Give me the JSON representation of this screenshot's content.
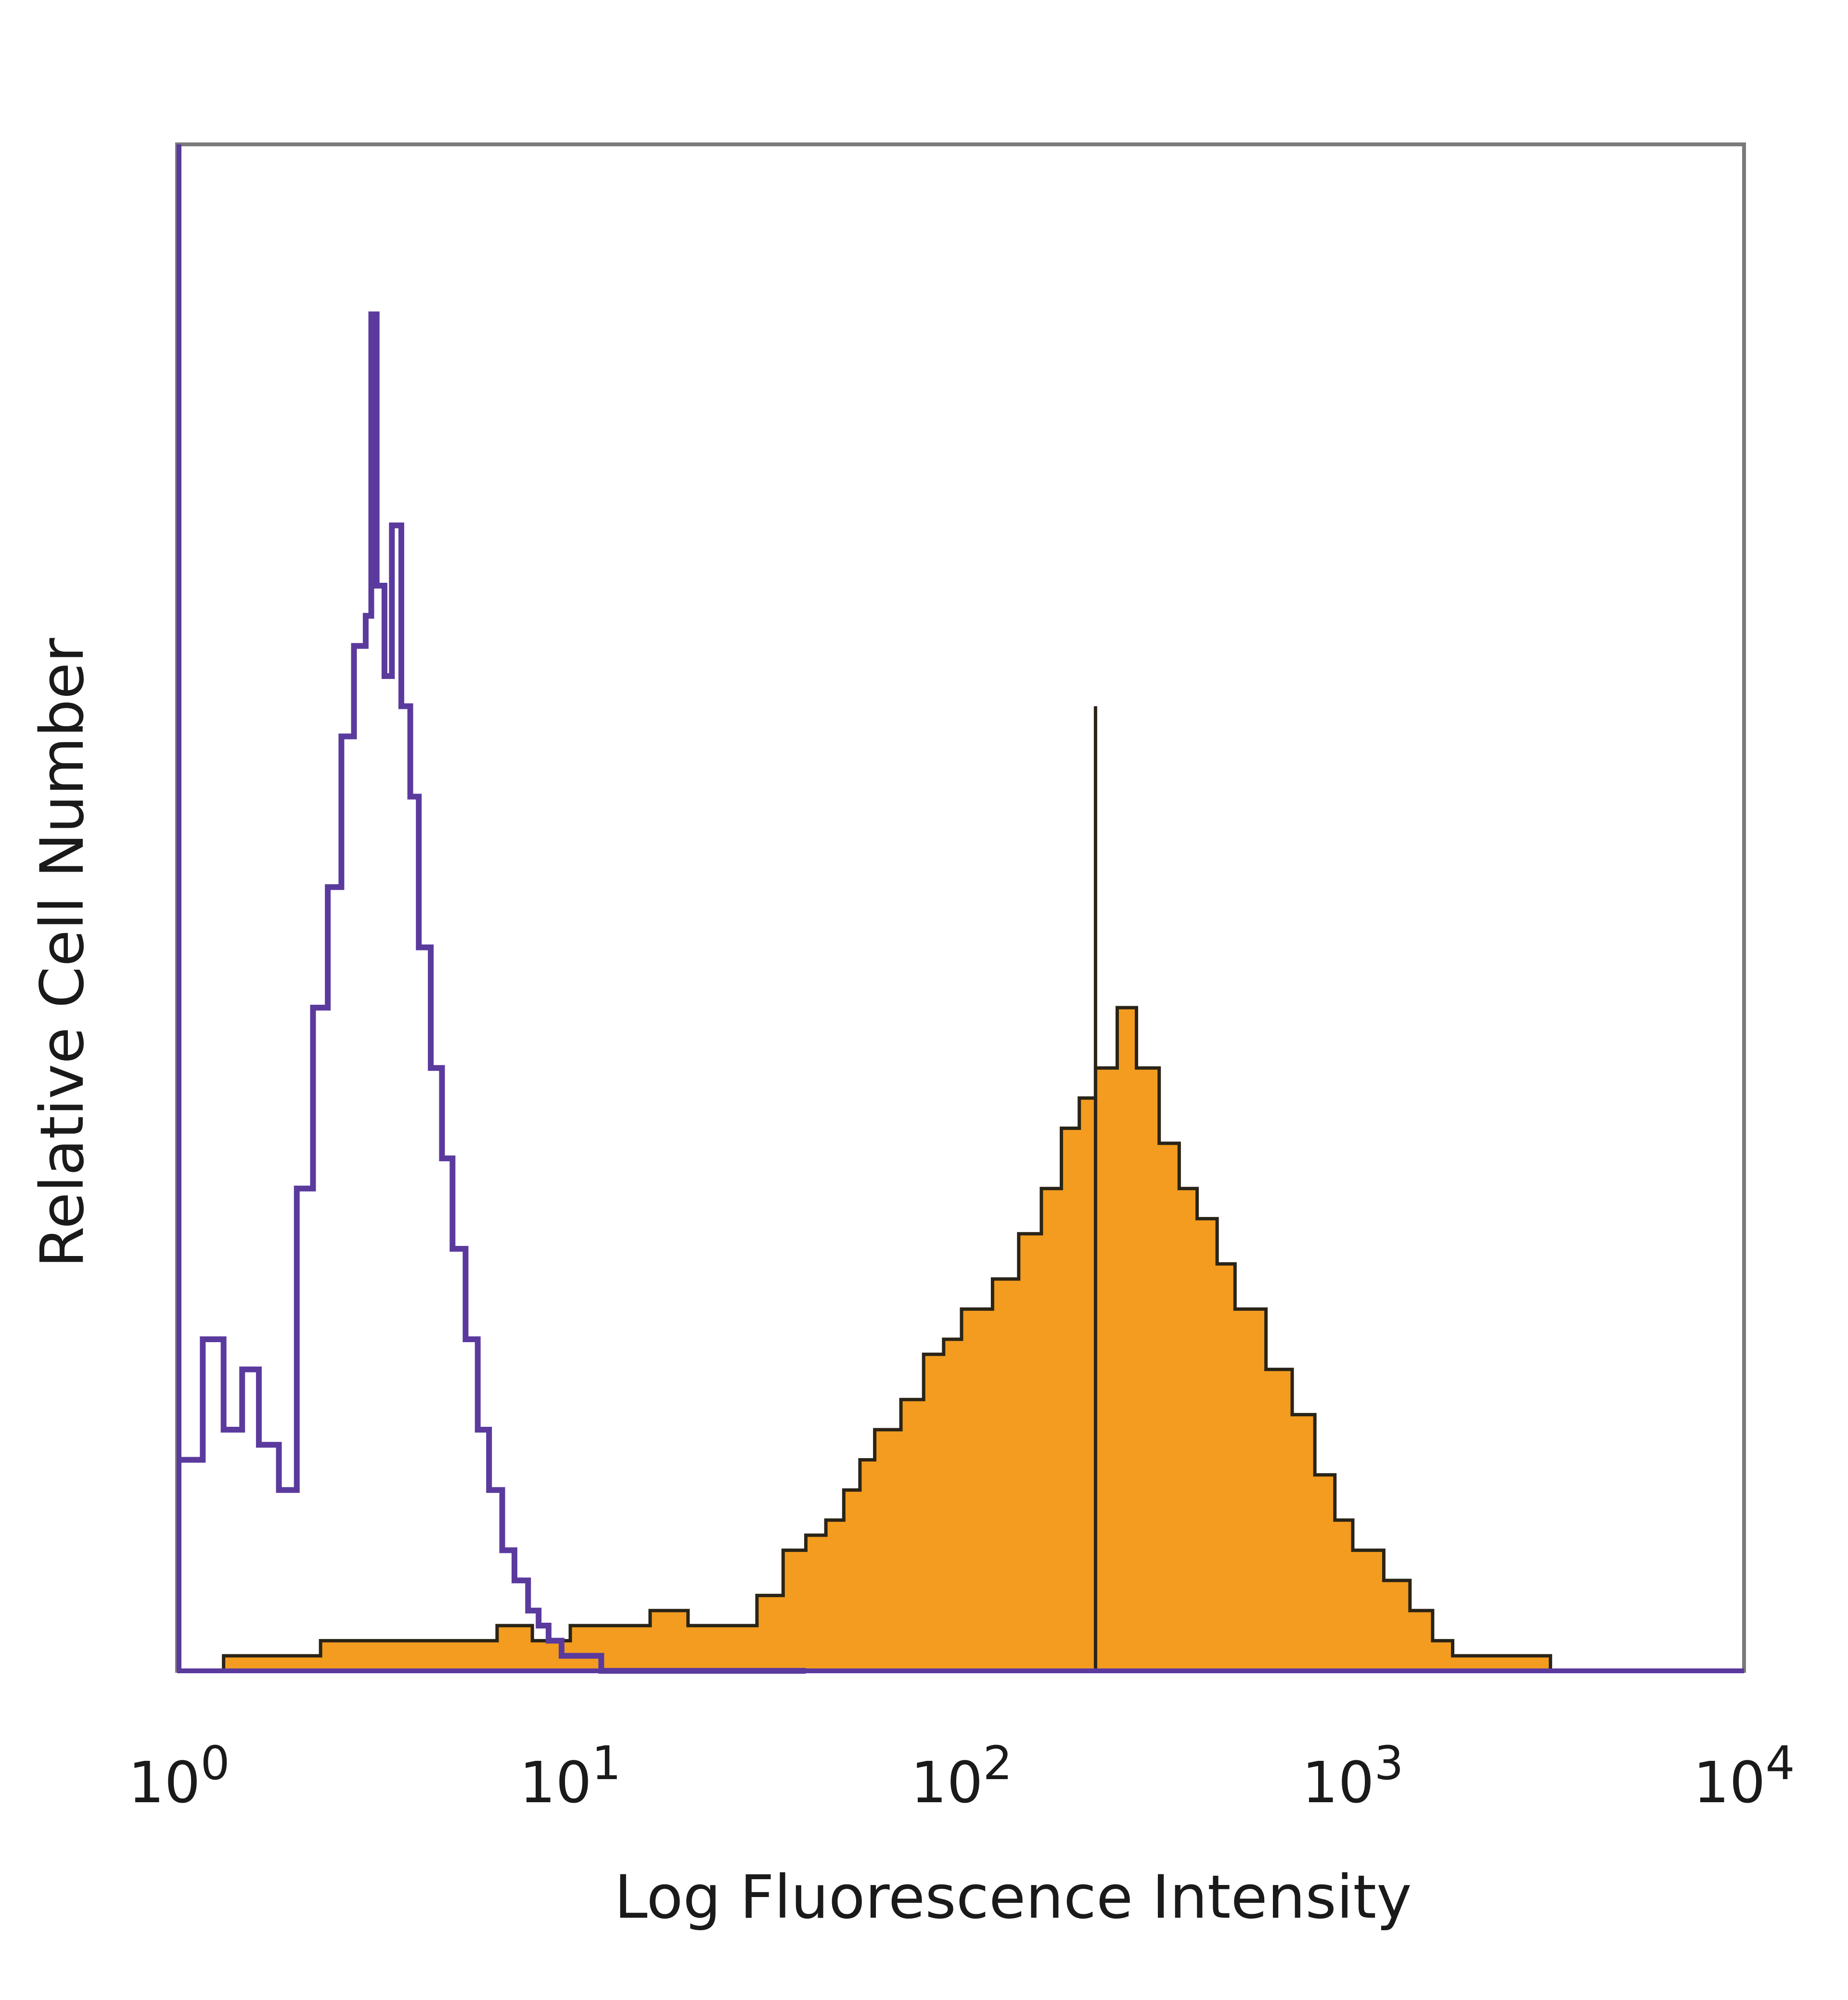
{
  "chart_data": {
    "type": "area",
    "title": "",
    "xlabel": "Log Fluorescence Intensity",
    "ylabel": "Relative Cell Number",
    "x_scale": "log",
    "xlim": [
      1,
      10000
    ],
    "ylim": [
      0,
      100
    ],
    "x_ticks": [
      {
        "value": 1,
        "base": "10",
        "exp": "0"
      },
      {
        "value": 10,
        "base": "10",
        "exp": "1"
      },
      {
        "value": 100,
        "base": "10",
        "exp": "2"
      },
      {
        "value": 1000,
        "base": "10",
        "exp": "3"
      },
      {
        "value": 10000,
        "base": "10",
        "exp": "4"
      }
    ],
    "y_ticks": [],
    "grid": false,
    "legend": "none",
    "series": [
      {
        "style": "outline",
        "color": "#5b3a9e",
        "x": [
          1.0,
          1.15,
          1.3,
          1.45,
          1.6,
          1.8,
          2.0,
          2.2,
          2.4,
          2.6,
          2.8,
          3.0,
          3.1,
          3.2,
          3.35,
          3.5,
          3.7,
          3.9,
          4.1,
          4.4,
          4.7,
          5.0,
          5.4,
          5.8,
          6.2,
          6.7,
          7.2,
          7.8,
          8.3,
          8.8,
          9.5,
          12,
          20,
          40
        ],
        "y": [
          14,
          22,
          16,
          20,
          15,
          12,
          32,
          44,
          52,
          62,
          68,
          70,
          90,
          72,
          66,
          76,
          64,
          58,
          48,
          40,
          34,
          28,
          22,
          16,
          12,
          8,
          6,
          4,
          3,
          2,
          1,
          0,
          0,
          0
        ]
      },
      {
        "style": "filled",
        "color": "#f39c1f",
        "outline_color": "#2a2418",
        "x": [
          1.3,
          2.3,
          3.0,
          4.0,
          5.0,
          6.5,
          8.0,
          10,
          13,
          16,
          20,
          25,
          30,
          35,
          40,
          45,
          50,
          55,
          60,
          70,
          80,
          90,
          100,
          120,
          140,
          160,
          180,
          200,
          220,
          250,
          280,
          320,
          360,
          400,
          450,
          500,
          600,
          700,
          800,
          900,
          1000,
          1200,
          1400,
          1600,
          1800,
          2000,
          2300,
          2600,
          3000,
          3200
        ],
        "y": [
          1,
          2,
          2,
          2,
          2,
          3,
          2,
          3,
          3,
          4,
          3,
          3,
          5,
          8,
          9,
          10,
          12,
          14,
          16,
          18,
          21,
          22,
          24,
          26,
          29,
          32,
          36,
          38,
          40,
          44,
          40,
          35,
          32,
          30,
          27,
          24,
          20,
          17,
          13,
          10,
          8,
          6,
          4,
          2,
          1,
          1,
          1,
          1,
          1,
          0
        ]
      }
    ],
    "spike": {
      "x": 220,
      "y": 64,
      "color": "#2a2418"
    }
  }
}
